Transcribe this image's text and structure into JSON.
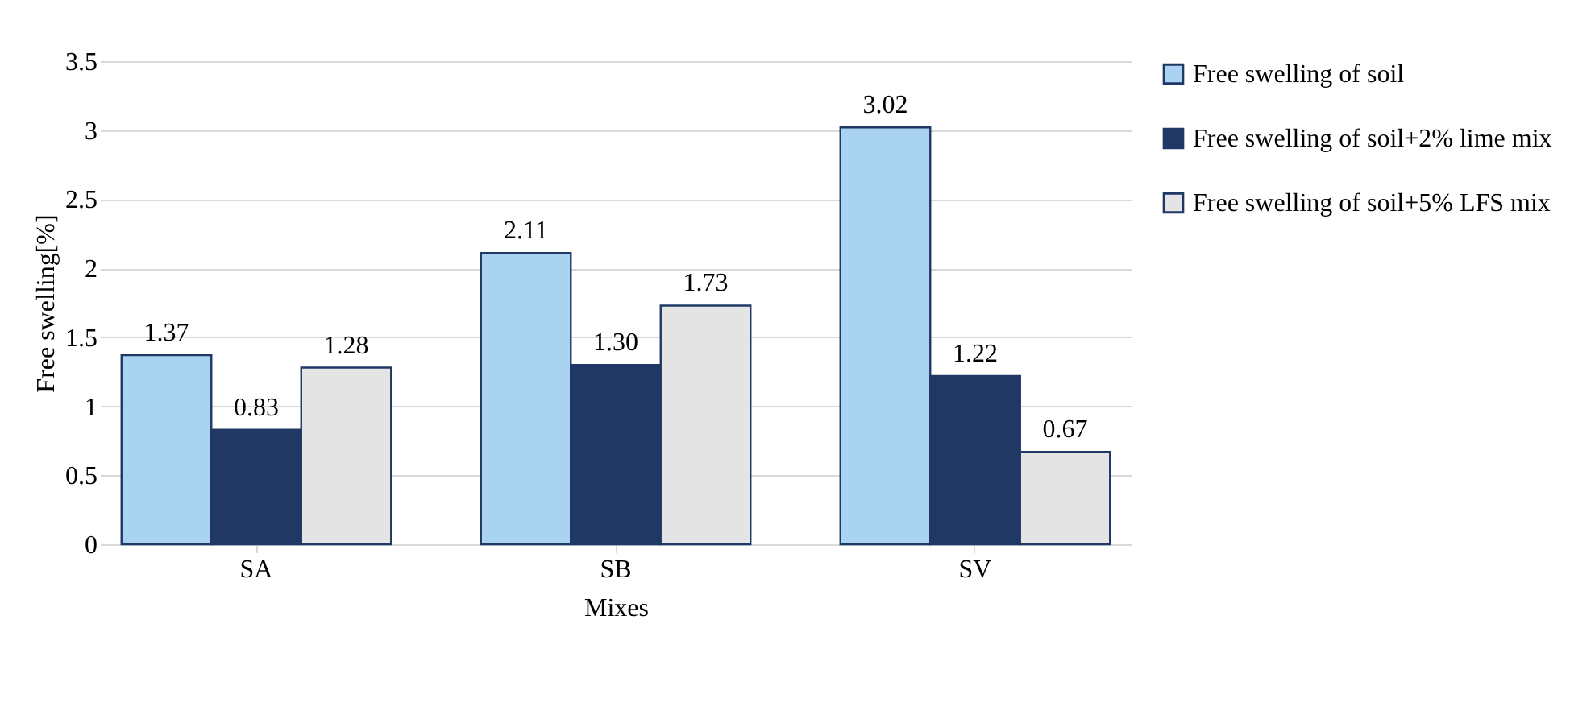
{
  "chart_data": {
    "type": "bar",
    "xlabel": "Mixes",
    "ylabel": "Free swelling[%]",
    "categories": [
      "SA",
      "SB",
      "SV"
    ],
    "series": [
      {
        "name": "Free swelling of soil",
        "color": "#a9d3f0",
        "values": [
          1.37,
          2.11,
          3.02
        ],
        "value_labels": [
          "1.37",
          "2.11",
          "3.02"
        ]
      },
      {
        "name": "Free swelling of soil+2% lime mix",
        "color": "#203864",
        "values": [
          0.83,
          1.3,
          1.22
        ],
        "value_labels": [
          "0.83",
          "1.30",
          "1.22"
        ]
      },
      {
        "name": "Free swelling of soil+5% LFS mix",
        "color": "#e4e4e4",
        "values": [
          1.28,
          1.73,
          0.67
        ],
        "value_labels": [
          "1.28",
          "1.73",
          "0.67"
        ]
      }
    ],
    "ylim": [
      0,
      3.5
    ],
    "yticks": [
      0,
      0.5,
      1,
      1.5,
      2,
      2.5,
      3,
      3.5
    ],
    "grid": "y",
    "legend": "right"
  }
}
